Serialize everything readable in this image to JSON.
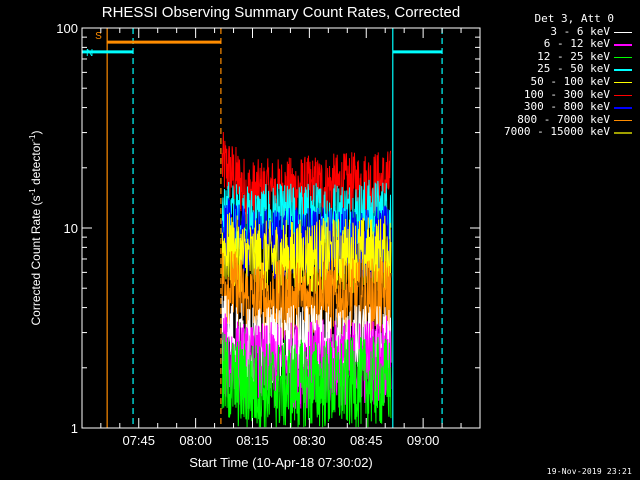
{
  "chart_data": {
    "type": "line",
    "title": "RHESSI Observing Summary Count Rates, Corrected",
    "xlabel": "Start Time (10-Apr-18 07:30:02)",
    "ylabel_main": "Corrected Count Rate (s",
    "ylabel_sup1": "-1",
    "ylabel_mid": " detector",
    "ylabel_sup2": "-1",
    "ylabel_end": ")",
    "y_scale": "log",
    "ylim": [
      1,
      100
    ],
    "yticks": [
      1,
      10,
      100
    ],
    "ytick_labels": [
      "1",
      "10",
      "100"
    ],
    "x_range": [
      "07:30:02",
      "09:15:00"
    ],
    "xticks": [
      "07:45",
      "08:00",
      "08:15",
      "08:30",
      "08:45",
      "09:00"
    ],
    "grid": false,
    "legend": {
      "title": "Det 3, Att 0",
      "placement": "right-outside",
      "entries": [
        {
          "label": "3 - 6 keV",
          "color": "#ffffff"
        },
        {
          "label": "6 - 12 keV",
          "color": "#ff00ff"
        },
        {
          "label": "12 - 25 keV",
          "color": "#00ff00"
        },
        {
          "label": "25 - 50 keV",
          "color": "#00ffff"
        },
        {
          "label": "50 - 100 keV",
          "color": "#ffff00"
        },
        {
          "label": "100 - 300 keV",
          "color": "#ff0000"
        },
        {
          "label": "300 - 800 keV",
          "color": "#0000ff"
        },
        {
          "label": "800 - 7000 keV",
          "color": "#ff8c00"
        },
        {
          "label": "7000 - 15000 keV",
          "color": "#a0a000"
        }
      ]
    },
    "data_window": {
      "start": "08:07:00",
      "end": "08:51:30"
    },
    "series": [
      {
        "name": "100 - 300 keV",
        "color": "#ff0000",
        "mean_start": 21,
        "mean_mid": 15,
        "mean_end": 17
      },
      {
        "name": "25 - 50 keV",
        "color": "#00ffff",
        "mean_start": 12,
        "mean_mid": 11,
        "mean_end": 12
      },
      {
        "name": "300 - 800 keV",
        "color": "#0000ff",
        "mean_start": 9.5,
        "mean_mid": 8.5,
        "mean_end": 8.5
      },
      {
        "name": "50 - 100 keV",
        "color": "#ffff00",
        "mean_start": 8,
        "mean_mid": 7,
        "mean_end": 7.5
      },
      {
        "name": "800 - 7000 keV",
        "color": "#ff8c00",
        "mean_start": 5.5,
        "mean_mid": 4.3,
        "mean_end": 4.5
      },
      {
        "name": "3 - 6 keV",
        "color": "#ffffff",
        "mean_start": 3,
        "mean_mid": 2.5,
        "mean_end": 2.6
      },
      {
        "name": "6 - 12 keV",
        "color": "#ff00ff",
        "mean_start": 2.3,
        "mean_mid": 2.0,
        "mean_end": 2.2
      },
      {
        "name": "12 - 25 keV",
        "color": "#00ff00",
        "mean_start": 1.8,
        "mean_mid": 1.6,
        "mean_end": 1.7
      }
    ],
    "flags": [
      {
        "label": "S",
        "color": "#ff8c00",
        "start": "07:36:40",
        "end": "08:06:40",
        "level": 85
      },
      {
        "label": "N",
        "color": "#00ffff",
        "start": "07:30:02",
        "end": "07:43:30",
        "level": 76
      },
      {
        "label": "",
        "color": "#00ffff",
        "start": "08:52:00",
        "end": "09:05:00",
        "level": 76
      }
    ],
    "markers": [
      {
        "time": "07:36:40",
        "color": "#ff8c00",
        "style": "solid"
      },
      {
        "time": "07:43:30",
        "color": "#00ffff",
        "style": "dashed"
      },
      {
        "time": "08:06:40",
        "color": "#ff8c00",
        "style": "dashed"
      },
      {
        "time": "08:52:00",
        "color": "#00ffff",
        "style": "solid"
      },
      {
        "time": "09:05:00",
        "color": "#00ffff",
        "style": "dashed"
      }
    ]
  },
  "timestamp": "19-Nov-2019 23:21"
}
